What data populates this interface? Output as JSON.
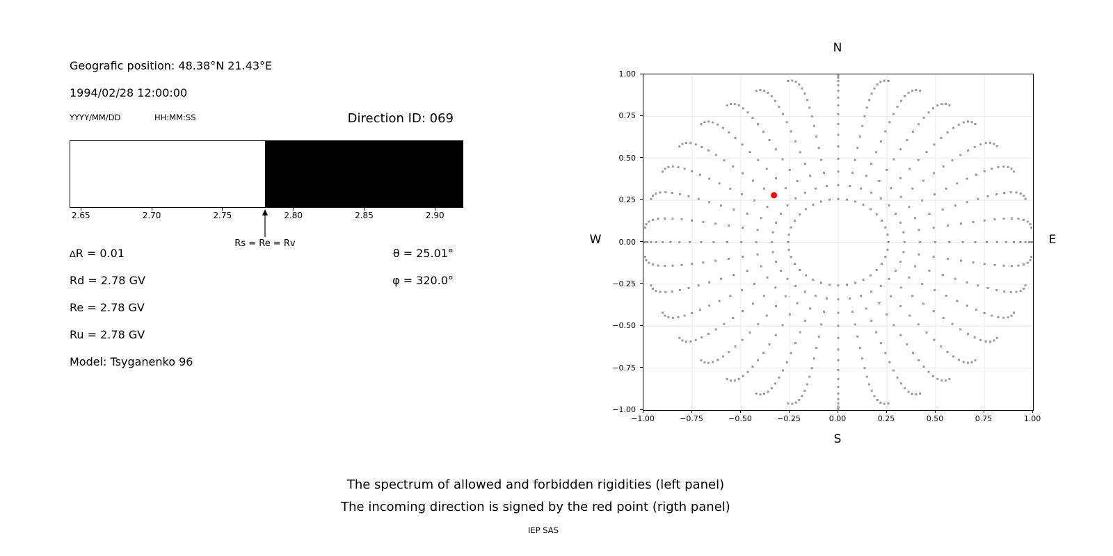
{
  "header": {
    "geo_position": "Geografic position: 48.38°N 21.43°E",
    "datetime": "1994/02/28 12:00:00",
    "date_format": "YYYY/MM/DD",
    "time_format": "HH:MM:SS",
    "direction_id": "Direction ID: 069"
  },
  "values": {
    "delta_sym": "∆",
    "delta_rest": "R = 0.01",
    "rd": "Rd = 2.78 GV",
    "re": "Re = 2.78 GV",
    "ru": "Ru = 2.78 GV",
    "model": "Model: Tsyganenko 96",
    "theta": "θ = 25.01°",
    "phi": "φ = 320.0°"
  },
  "caption": {
    "line1": "The spectrum of allowed and forbidden rigidities (left panel)",
    "line2": "The incoming direction is signed by the red point (rigth panel)",
    "credit": "IEP SAS"
  },
  "chart_data": [
    {
      "id": "rigidity-spectrum",
      "type": "bar",
      "title": "",
      "xlim": [
        2.642,
        2.92
      ],
      "boundary": 2.78,
      "regions": [
        {
          "label": "allowed",
          "from": 2.642,
          "to": 2.78,
          "color": "#ffffff"
        },
        {
          "label": "forbidden",
          "from": 2.78,
          "to": 2.92,
          "color": "#000000"
        }
      ],
      "x_ticks": [
        2.65,
        2.7,
        2.75,
        2.8,
        2.85,
        2.9
      ],
      "x_tick_labels": [
        "2.65",
        "2.70",
        "2.75",
        "2.80",
        "2.85",
        "2.90"
      ],
      "annotation": {
        "text": "Rs = Re = Rv",
        "x": 2.78
      }
    },
    {
      "id": "asymptotic-directions",
      "type": "scatter",
      "xlim": [
        -1.0,
        1.0
      ],
      "ylim": [
        -1.0,
        1.0
      ],
      "grid": true,
      "grid_color": "#e9e9e9",
      "x_ticks": [
        -1.0,
        -0.75,
        -0.5,
        -0.25,
        0.0,
        0.25,
        0.5,
        0.75,
        1.0
      ],
      "y_ticks": [
        1.0,
        0.75,
        0.5,
        0.25,
        0.0,
        -0.25,
        -0.5,
        -0.75,
        -1.0
      ],
      "x_tick_labels": [
        "−1.00",
        "−0.75",
        "−0.50",
        "−0.25",
        "0.00",
        "0.25",
        "0.50",
        "0.75",
        "1.00"
      ],
      "y_tick_labels": [
        "1.00",
        "0.75",
        "0.50",
        "0.25",
        "0.00",
        "−0.25",
        "−0.50",
        "−0.75",
        "−1.00"
      ],
      "compass": {
        "north": "N",
        "south": "S",
        "east": "E",
        "west": "W"
      },
      "marker_color": "#999999",
      "marker_size_px": 3,
      "red_point": {
        "x": -0.33,
        "y": 0.28,
        "color": "#ff0000",
        "radius_px": 4.5
      },
      "spokes": {
        "count": 36,
        "azimuth_start_deg": 0,
        "azimuth_step_deg": 10,
        "zenith_start_deg": 15,
        "zenith_end_deg": 90,
        "zenith_step_deg": 5,
        "radius_rule": "sin(zenith)",
        "radius_scale": 0.995,
        "drift_max_deg": 5,
        "drift_power": 4,
        "drift_toward": "horizontal-axis"
      }
    }
  ]
}
